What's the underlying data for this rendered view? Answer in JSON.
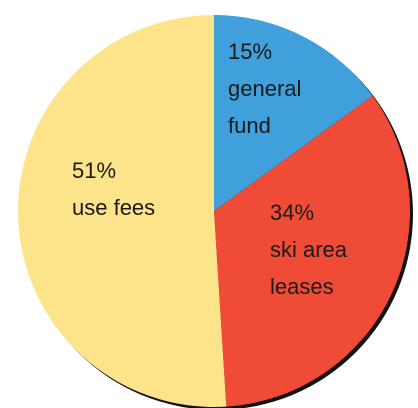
{
  "chart_data": {
    "type": "pie",
    "categories": [
      "general fund",
      "ski area leases",
      "use fees"
    ],
    "values": [
      15,
      34,
      51
    ],
    "value_labels": [
      "15%",
      "34%",
      "51%"
    ],
    "colors": [
      "#3fa0dc",
      "#f04b37",
      "#fde48a"
    ]
  }
}
